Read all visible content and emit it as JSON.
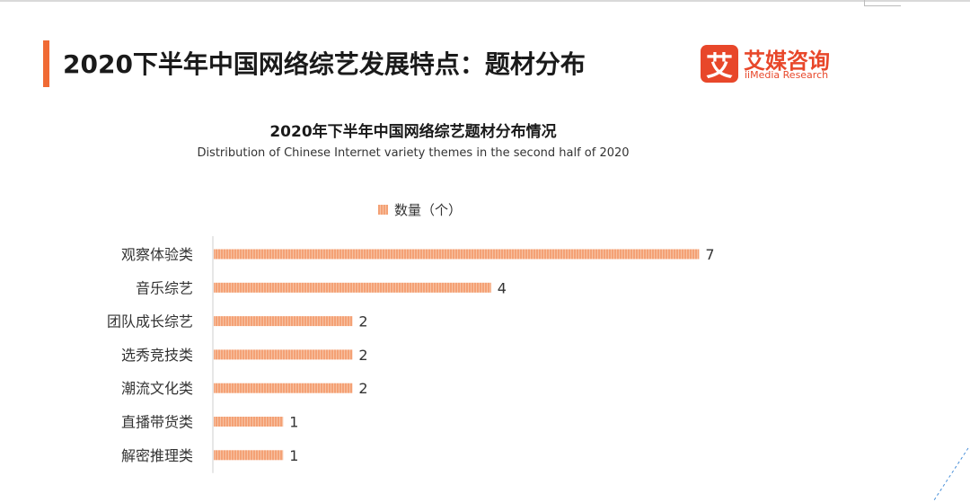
{
  "page": {
    "title": "2020下半年中国网络综艺发展特点：题材分布"
  },
  "logo": {
    "mark": "艾",
    "name_cn": "艾媒咨询",
    "name_en": "iiMedia Research"
  },
  "colors": {
    "accent": "#f06a34",
    "bar": "#f4a175",
    "bar_stripe": "#f7c2a3",
    "logo": "#e8472a"
  },
  "chart_data": {
    "type": "bar",
    "orientation": "horizontal",
    "title": "2020年下半年中国网络综艺题材分布情况",
    "subtitle": "Distribution of Chinese Internet variety themes in the second half of 2020",
    "categories": [
      "观察体验类",
      "音乐综艺",
      "团队成长综艺",
      "选秀竞技类",
      "潮流文化类",
      "直播带货类",
      "解密推理类"
    ],
    "series": [
      {
        "name": "数量（个）",
        "values": [
          7,
          4,
          2,
          2,
          2,
          1,
          1
        ]
      }
    ],
    "xlim": [
      0,
      7
    ],
    "legend_position": "top",
    "grid": false,
    "data_labels": true
  }
}
